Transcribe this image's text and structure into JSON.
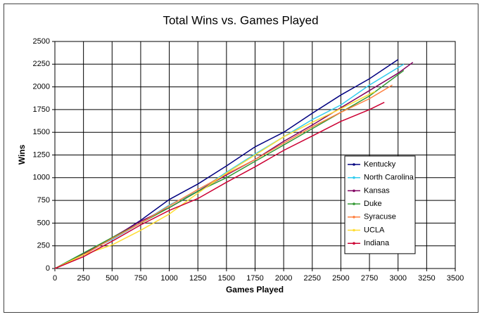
{
  "chart_data": {
    "type": "line",
    "title": "Total Wins vs. Games Played",
    "x_label": "Games Played",
    "y_label": "Wins",
    "xlim": [
      0,
      3500
    ],
    "xticks": [
      0,
      250,
      500,
      750,
      1000,
      1250,
      1500,
      1750,
      2000,
      2250,
      2500,
      2750,
      3000,
      3250,
      3500
    ],
    "ylim": [
      0,
      2500
    ],
    "yticks": [
      0,
      250,
      500,
      750,
      1000,
      1250,
      1500,
      1750,
      2000,
      2250,
      2500
    ],
    "grid": true,
    "legend": "right",
    "series": [
      {
        "name": "Kentucky",
        "color": "#000080",
        "x": [
          0,
          250,
          500,
          750,
          1000,
          1250,
          1500,
          1750,
          2000,
          2250,
          2500,
          2750,
          3000
        ],
        "values": [
          0,
          150,
          330,
          530,
          760,
          930,
          1130,
          1340,
          1500,
          1710,
          1910,
          2090,
          2300
        ]
      },
      {
        "name": "North Carolina",
        "color": "#33ccee",
        "x": [
          0,
          250,
          500,
          750,
          1000,
          1250,
          1500,
          1750,
          2000,
          2250,
          2500,
          2750,
          3050
        ],
        "values": [
          0,
          170,
          320,
          500,
          700,
          850,
          1060,
          1260,
          1450,
          1640,
          1800,
          2020,
          2250
        ]
      },
      {
        "name": "Kansas",
        "color": "#800060",
        "x": [
          0,
          250,
          500,
          750,
          1000,
          1250,
          1500,
          1750,
          2000,
          2250,
          2500,
          2750,
          3000,
          3130
        ],
        "values": [
          0,
          160,
          340,
          520,
          670,
          850,
          1030,
          1200,
          1400,
          1580,
          1770,
          1960,
          2150,
          2270
        ]
      },
      {
        "name": "Duke",
        "color": "#339933",
        "x": [
          0,
          250,
          500,
          750,
          1000,
          1250,
          1500,
          1750,
          2000,
          2250,
          2500,
          2750,
          3050
        ],
        "values": [
          0,
          170,
          340,
          500,
          670,
          850,
          1000,
          1180,
          1360,
          1540,
          1720,
          1900,
          2180
        ]
      },
      {
        "name": "Syracuse",
        "color": "#ff8040",
        "x": [
          0,
          250,
          500,
          750,
          1000,
          1250,
          1500,
          1750,
          2000,
          2250,
          2500,
          2750,
          2950
        ],
        "values": [
          0,
          150,
          330,
          500,
          690,
          870,
          1040,
          1200,
          1380,
          1560,
          1720,
          1870,
          2020
        ]
      },
      {
        "name": "UCLA",
        "color": "#ffdd33",
        "x": [
          0,
          250,
          500,
          750,
          1000,
          1250,
          1500,
          1750,
          2000,
          2250,
          2500,
          2800
        ],
        "values": [
          0,
          150,
          260,
          420,
          600,
          830,
          1050,
          1250,
          1450,
          1610,
          1760,
          1950
        ]
      },
      {
        "name": "Indiana",
        "color": "#cc0033",
        "x": [
          0,
          250,
          500,
          750,
          1000,
          1250,
          1500,
          1750,
          2000,
          2250,
          2500,
          2750,
          2880
        ],
        "values": [
          0,
          130,
          300,
          480,
          640,
          770,
          950,
          1120,
          1300,
          1460,
          1620,
          1750,
          1830
        ]
      }
    ]
  }
}
